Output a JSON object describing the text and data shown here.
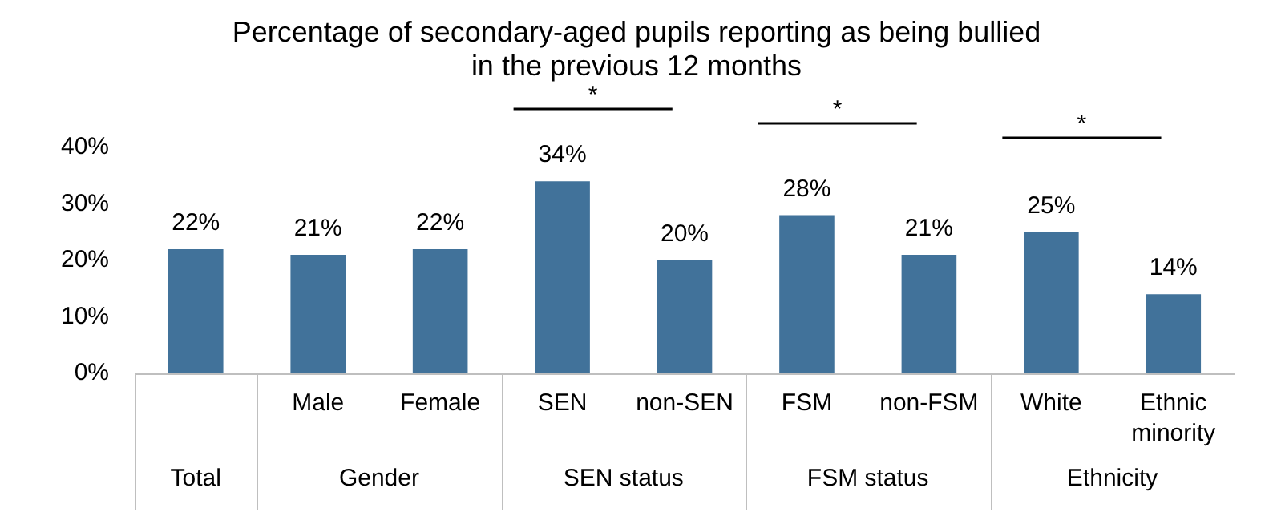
{
  "chart_data": {
    "type": "bar",
    "title": "Percentage of secondary-aged pupils reporting as being bullied in the previous 12 months",
    "categories": [
      null,
      "Male",
      "Female",
      "SEN",
      "non-SEN",
      "FSM",
      "non-FSM",
      "White",
      "Ethnic minority"
    ],
    "values": [
      22,
      21,
      22,
      34,
      20,
      28,
      21,
      25,
      14
    ],
    "value_labels": [
      "22%",
      "21%",
      "22%",
      "34%",
      "20%",
      "28%",
      "21%",
      "25%",
      "14%"
    ],
    "color": "#41729a",
    "ylim": [
      0,
      40
    ],
    "yticks": [
      {
        "value": 0,
        "label": "0%"
      },
      {
        "value": 10,
        "label": "10%"
      },
      {
        "value": 20,
        "label": "20%"
      },
      {
        "value": 30,
        "label": "30%"
      },
      {
        "value": 40,
        "label": "40%"
      }
    ],
    "grid": false,
    "legend": false,
    "annotations": [
      "Total",
      "Gender",
      "SEN status",
      "FSM status",
      "Ethnicity",
      "*",
      "*",
      "*"
    ]
  }
}
